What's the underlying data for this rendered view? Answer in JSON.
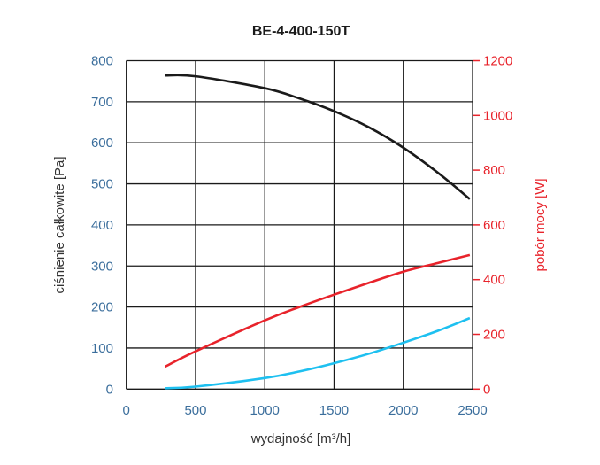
{
  "chart_data": {
    "type": "line",
    "title": "BE-4-400-150T",
    "xlabel": "wydajność [m³/h]",
    "ylabel": "ciśnienie całkowite [Pa]",
    "y2label": "pobór mocy [W]",
    "xlim": [
      0,
      2500
    ],
    "ylim": [
      0,
      800
    ],
    "y2lim": [
      0,
      1200
    ],
    "xticks": [
      "0",
      "500",
      "1000",
      "1500",
      "2000",
      "2500"
    ],
    "yticks": [
      "0",
      "100",
      "200",
      "300",
      "400",
      "500",
      "600",
      "700",
      "800"
    ],
    "y2ticks": [
      "0",
      "200",
      "400",
      "600",
      "800",
      "1000",
      "1200"
    ],
    "grid": true,
    "colors": {
      "left_axis": "#3b6e9c",
      "right_axis": "#e8232b",
      "pressure": "#1a1a1a",
      "power": "#e8232b",
      "blue_series": "#1ec0f0"
    },
    "series": [
      {
        "name": "ciśnienie całkowite",
        "axis": "left",
        "color": "#1a1a1a",
        "x": [
          280,
          500,
          1000,
          1250,
          1500,
          1750,
          2000,
          2250,
          2480
        ],
        "y": [
          764,
          762,
          733,
          708,
          677,
          638,
          588,
          527,
          463
        ]
      },
      {
        "name": "pobór mocy",
        "axis": "right",
        "color": "#e8232b",
        "x": [
          280,
          500,
          1000,
          1250,
          1500,
          1750,
          2000,
          2250,
          2480
        ],
        "y": [
          82,
          138,
          251,
          300,
          345,
          388,
          429,
          461,
          490
        ]
      },
      {
        "name": "blue curve",
        "axis": "left",
        "color": "#1ec0f0",
        "x": [
          280,
          500,
          1000,
          1250,
          1500,
          1750,
          2000,
          2250,
          2480
        ],
        "y": [
          2,
          6,
          27,
          43,
          63,
          86,
          113,
          142,
          173
        ]
      }
    ]
  }
}
